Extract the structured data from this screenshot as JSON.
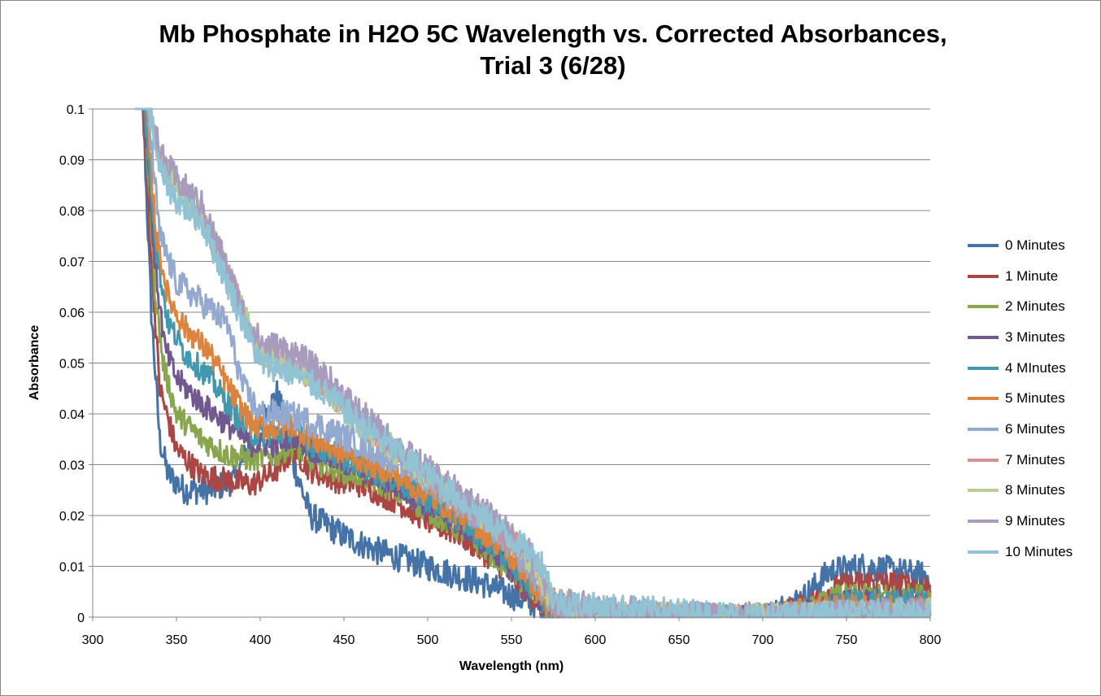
{
  "chart_data": {
    "type": "line",
    "title": "Mb Phosphate in H2O 5C Wavelength vs. Corrected Absorbances, Trial 3 (6/28)",
    "title_lines": [
      "Mb Phosphate in H2O 5C Wavelength vs. Corrected Absorbances,",
      "Trial 3 (6/28)"
    ],
    "xlabel": "Wavelength (nm)",
    "ylabel": "Absorbance",
    "xlim": [
      300,
      800
    ],
    "ylim": [
      0,
      0.1
    ],
    "x_ticks": [
      "300",
      "350",
      "400",
      "450",
      "500",
      "550",
      "600",
      "650",
      "700",
      "750",
      "800"
    ],
    "y_ticks": [
      "0",
      "0.01",
      "0.02",
      "0.03",
      "0.04",
      "0.05",
      "0.06",
      "0.07",
      "0.08",
      "0.09",
      "0.1"
    ],
    "grid": "horizontal",
    "legend_position": "right",
    "note": "Series values are approximate anchor points (wavelength nm, absorbance) read off the noisy traces; plotted with added noise of the given amplitude.",
    "series": [
      {
        "name": "0 Minutes",
        "color": "#4572A7",
        "noise": 0.0028,
        "points": [
          [
            330,
            0.1
          ],
          [
            335,
            0.06
          ],
          [
            340,
            0.035
          ],
          [
            345,
            0.028
          ],
          [
            355,
            0.025
          ],
          [
            370,
            0.025
          ],
          [
            385,
            0.027
          ],
          [
            395,
            0.035
          ],
          [
            410,
            0.044
          ],
          [
            415,
            0.038
          ],
          [
            420,
            0.03
          ],
          [
            430,
            0.02
          ],
          [
            450,
            0.016
          ],
          [
            470,
            0.013
          ],
          [
            500,
            0.01
          ],
          [
            530,
            0.007
          ],
          [
            560,
            0.003
          ],
          [
            575,
            0.0
          ],
          [
            700,
            0.0
          ],
          [
            725,
            0.004
          ],
          [
            740,
            0.009
          ],
          [
            760,
            0.01
          ],
          [
            780,
            0.009
          ],
          [
            800,
            0.008
          ]
        ]
      },
      {
        "name": "1 Minute",
        "color": "#AA4643",
        "noise": 0.0025,
        "points": [
          [
            330,
            0.1
          ],
          [
            336,
            0.065
          ],
          [
            340,
            0.045
          ],
          [
            350,
            0.033
          ],
          [
            365,
            0.028
          ],
          [
            380,
            0.027
          ],
          [
            395,
            0.026
          ],
          [
            410,
            0.029
          ],
          [
            420,
            0.033
          ],
          [
            430,
            0.029
          ],
          [
            445,
            0.027
          ],
          [
            460,
            0.026
          ],
          [
            480,
            0.023
          ],
          [
            500,
            0.019
          ],
          [
            520,
            0.016
          ],
          [
            540,
            0.011
          ],
          [
            560,
            0.005
          ],
          [
            575,
            0.0
          ],
          [
            700,
            0.0
          ],
          [
            725,
            0.002
          ],
          [
            745,
            0.006
          ],
          [
            765,
            0.007
          ],
          [
            800,
            0.006
          ]
        ]
      },
      {
        "name": "2 Minutes",
        "color": "#89A54E",
        "noise": 0.0025,
        "points": [
          [
            331,
            0.1
          ],
          [
            337,
            0.065
          ],
          [
            342,
            0.05
          ],
          [
            350,
            0.04
          ],
          [
            365,
            0.035
          ],
          [
            380,
            0.032
          ],
          [
            395,
            0.031
          ],
          [
            410,
            0.032
          ],
          [
            420,
            0.034
          ],
          [
            430,
            0.031
          ],
          [
            445,
            0.029
          ],
          [
            460,
            0.028
          ],
          [
            480,
            0.025
          ],
          [
            500,
            0.021
          ],
          [
            520,
            0.017
          ],
          [
            540,
            0.012
          ],
          [
            560,
            0.006
          ],
          [
            575,
            0.0
          ],
          [
            700,
            0.0
          ],
          [
            725,
            0.001
          ],
          [
            745,
            0.004
          ],
          [
            770,
            0.004
          ],
          [
            800,
            0.004
          ]
        ]
      },
      {
        "name": "3 Minutes",
        "color": "#71588F",
        "noise": 0.0025,
        "points": [
          [
            331,
            0.1
          ],
          [
            337,
            0.07
          ],
          [
            343,
            0.053
          ],
          [
            350,
            0.047
          ],
          [
            365,
            0.042
          ],
          [
            380,
            0.038
          ],
          [
            395,
            0.034
          ],
          [
            410,
            0.034
          ],
          [
            420,
            0.036
          ],
          [
            430,
            0.033
          ],
          [
            445,
            0.031
          ],
          [
            460,
            0.029
          ],
          [
            480,
            0.026
          ],
          [
            500,
            0.022
          ],
          [
            520,
            0.018
          ],
          [
            540,
            0.013
          ],
          [
            560,
            0.006
          ],
          [
            575,
            0.0
          ],
          [
            700,
            0.0
          ],
          [
            730,
            0.001
          ],
          [
            750,
            0.003
          ],
          [
            800,
            0.003
          ]
        ]
      },
      {
        "name": "4 MInutes",
        "color": "#4198AF",
        "noise": 0.0025,
        "points": [
          [
            331,
            0.1
          ],
          [
            338,
            0.072
          ],
          [
            345,
            0.058
          ],
          [
            355,
            0.052
          ],
          [
            370,
            0.047
          ],
          [
            385,
            0.04
          ],
          [
            395,
            0.036
          ],
          [
            410,
            0.036
          ],
          [
            420,
            0.037
          ],
          [
            430,
            0.034
          ],
          [
            445,
            0.032
          ],
          [
            460,
            0.03
          ],
          [
            480,
            0.027
          ],
          [
            500,
            0.023
          ],
          [
            520,
            0.019
          ],
          [
            540,
            0.014
          ],
          [
            560,
            0.007
          ],
          [
            575,
            0.0
          ],
          [
            700,
            0.0
          ],
          [
            730,
            0.001
          ],
          [
            750,
            0.003
          ],
          [
            800,
            0.003
          ]
        ]
      },
      {
        "name": "5 Minutes",
        "color": "#DB843D",
        "noise": 0.0025,
        "points": [
          [
            332,
            0.1
          ],
          [
            338,
            0.075
          ],
          [
            345,
            0.063
          ],
          [
            355,
            0.057
          ],
          [
            370,
            0.052
          ],
          [
            385,
            0.043
          ],
          [
            395,
            0.038
          ],
          [
            410,
            0.037
          ],
          [
            420,
            0.038
          ],
          [
            430,
            0.035
          ],
          [
            445,
            0.033
          ],
          [
            460,
            0.031
          ],
          [
            480,
            0.028
          ],
          [
            500,
            0.024
          ],
          [
            520,
            0.02
          ],
          [
            540,
            0.015
          ],
          [
            560,
            0.008
          ],
          [
            575,
            0.0
          ],
          [
            700,
            0.0
          ],
          [
            740,
            0.002
          ],
          [
            800,
            0.002
          ]
        ]
      },
      {
        "name": "6 Minutes",
        "color": "#93A9CF",
        "noise": 0.0028,
        "points": [
          [
            333,
            0.1
          ],
          [
            340,
            0.075
          ],
          [
            350,
            0.066
          ],
          [
            365,
            0.062
          ],
          [
            380,
            0.058
          ],
          [
            390,
            0.045
          ],
          [
            400,
            0.04
          ],
          [
            415,
            0.04
          ],
          [
            425,
            0.039
          ],
          [
            440,
            0.037
          ],
          [
            460,
            0.034
          ],
          [
            480,
            0.031
          ],
          [
            500,
            0.027
          ],
          [
            520,
            0.022
          ],
          [
            540,
            0.017
          ],
          [
            560,
            0.01
          ],
          [
            575,
            0.002
          ],
          [
            600,
            0.001
          ],
          [
            650,
            0.0
          ],
          [
            700,
            0.0
          ],
          [
            800,
            0.001
          ]
        ]
      },
      {
        "name": "7 Minutes",
        "color": "#D19392",
        "noise": 0.0028,
        "points": [
          [
            334,
            0.1
          ],
          [
            340,
            0.09
          ],
          [
            350,
            0.084
          ],
          [
            365,
            0.079
          ],
          [
            375,
            0.072
          ],
          [
            390,
            0.06
          ],
          [
            400,
            0.052
          ],
          [
            420,
            0.05
          ],
          [
            440,
            0.045
          ],
          [
            460,
            0.038
          ],
          [
            480,
            0.033
          ],
          [
            500,
            0.028
          ],
          [
            520,
            0.023
          ],
          [
            540,
            0.018
          ],
          [
            560,
            0.012
          ],
          [
            575,
            0.003
          ],
          [
            600,
            0.001
          ],
          [
            650,
            0.0
          ],
          [
            700,
            0.0
          ],
          [
            800,
            0.001
          ]
        ]
      },
      {
        "name": "8 Minutes",
        "color": "#B9CD96",
        "noise": 0.0028,
        "points": [
          [
            334,
            0.1
          ],
          [
            340,
            0.09
          ],
          [
            350,
            0.084
          ],
          [
            365,
            0.079
          ],
          [
            375,
            0.072
          ],
          [
            390,
            0.06
          ],
          [
            400,
            0.052
          ],
          [
            420,
            0.05
          ],
          [
            440,
            0.045
          ],
          [
            460,
            0.038
          ],
          [
            480,
            0.033
          ],
          [
            500,
            0.028
          ],
          [
            520,
            0.023
          ],
          [
            540,
            0.018
          ],
          [
            560,
            0.012
          ],
          [
            575,
            0.003
          ],
          [
            600,
            0.001
          ],
          [
            650,
            0.0
          ],
          [
            700,
            0.0
          ],
          [
            800,
            0.001
          ]
        ]
      },
      {
        "name": "9 Minutes",
        "color": "#A99BBD",
        "noise": 0.003,
        "points": [
          [
            335,
            0.1
          ],
          [
            340,
            0.091
          ],
          [
            350,
            0.086
          ],
          [
            365,
            0.081
          ],
          [
            375,
            0.073
          ],
          [
            390,
            0.06
          ],
          [
            400,
            0.054
          ],
          [
            420,
            0.052
          ],
          [
            440,
            0.047
          ],
          [
            460,
            0.04
          ],
          [
            480,
            0.034
          ],
          [
            500,
            0.029
          ],
          [
            520,
            0.024
          ],
          [
            540,
            0.019
          ],
          [
            560,
            0.013
          ],
          [
            575,
            0.003
          ],
          [
            600,
            0.002
          ],
          [
            650,
            0.0
          ],
          [
            700,
            0.0
          ],
          [
            800,
            0.001
          ]
        ]
      },
      {
        "name": "10 Minutes",
        "color": "#91C3D5",
        "noise": 0.0028,
        "points": [
          [
            334,
            0.1
          ],
          [
            340,
            0.088
          ],
          [
            350,
            0.082
          ],
          [
            365,
            0.078
          ],
          [
            375,
            0.07
          ],
          [
            390,
            0.058
          ],
          [
            400,
            0.05
          ],
          [
            420,
            0.048
          ],
          [
            440,
            0.044
          ],
          [
            460,
            0.038
          ],
          [
            480,
            0.033
          ],
          [
            500,
            0.028
          ],
          [
            520,
            0.023
          ],
          [
            540,
            0.018
          ],
          [
            560,
            0.013
          ],
          [
            570,
            0.01
          ],
          [
            575,
            0.003
          ],
          [
            600,
            0.002
          ],
          [
            650,
            0.001
          ],
          [
            700,
            0.0
          ],
          [
            800,
            0.001
          ]
        ]
      }
    ]
  }
}
